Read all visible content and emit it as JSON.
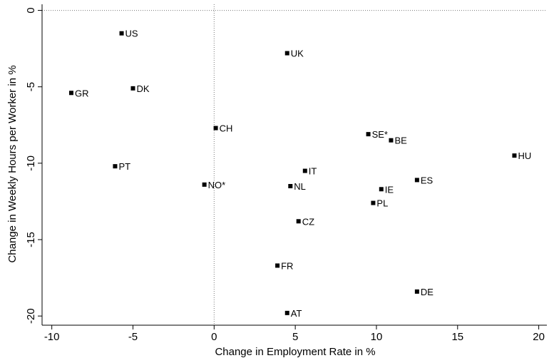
{
  "chart_data": {
    "type": "scatter",
    "xlabel": "Change in Employment Rate in %",
    "ylabel": "Change in Weekly Hours per Worker in %",
    "xlim": [
      -10.6,
      20.5
    ],
    "ylim": [
      -20.6,
      0.4
    ],
    "xticks": [
      -10,
      -5,
      0,
      5,
      10,
      15,
      20
    ],
    "yticks": [
      0,
      -5,
      -10,
      -15,
      -20
    ],
    "reference_lines": {
      "x": 0,
      "y": 0,
      "style": "dotted"
    },
    "grid": false,
    "points": [
      {
        "label": "US",
        "x": -5.7,
        "y": -1.5
      },
      {
        "label": "UK",
        "x": 4.5,
        "y": -2.8
      },
      {
        "label": "GR",
        "x": -8.8,
        "y": -5.4
      },
      {
        "label": "DK",
        "x": -5.0,
        "y": -5.1
      },
      {
        "label": "CH",
        "x": 0.1,
        "y": -7.7
      },
      {
        "label": "SE*",
        "x": 9.5,
        "y": -8.1
      },
      {
        "label": "BE",
        "x": 10.9,
        "y": -8.5
      },
      {
        "label": "HU",
        "x": 18.5,
        "y": -9.5
      },
      {
        "label": "PT",
        "x": -6.1,
        "y": -10.2
      },
      {
        "label": "IT",
        "x": 5.6,
        "y": -10.5
      },
      {
        "label": "NO*",
        "x": -0.6,
        "y": -11.4
      },
      {
        "label": "NL",
        "x": 4.7,
        "y": -11.5
      },
      {
        "label": "ES",
        "x": 12.5,
        "y": -11.1
      },
      {
        "label": "IE",
        "x": 10.3,
        "y": -11.7
      },
      {
        "label": "PL",
        "x": 9.8,
        "y": -12.6
      },
      {
        "label": "CZ",
        "x": 5.2,
        "y": -13.8
      },
      {
        "label": "FR",
        "x": 3.9,
        "y": -16.7
      },
      {
        "label": "DE",
        "x": 12.5,
        "y": -18.4
      },
      {
        "label": "AT",
        "x": 4.5,
        "y": -19.8
      }
    ]
  }
}
